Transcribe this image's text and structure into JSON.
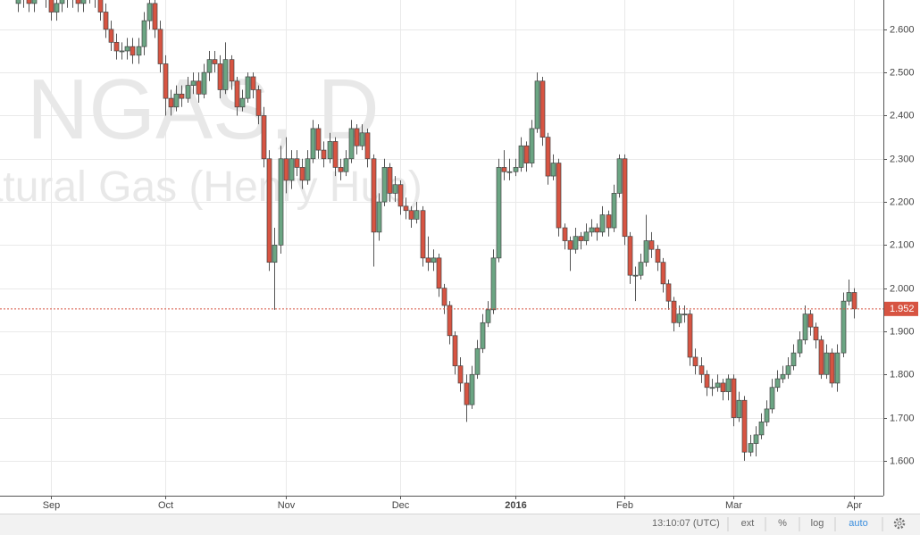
{
  "chart_data": {
    "type": "candlestick",
    "watermark": "NGAS, D",
    "watermark_subtitle": "Natural Gas (Henry Hub)",
    "up_color": "#6ba583",
    "down_color": "#d75442",
    "grid": true,
    "ylim": [
      1.519,
      2.668
    ],
    "yticks": [
      {
        "value": 1.6,
        "label": "1.600"
      },
      {
        "value": 1.7,
        "label": "1.700"
      },
      {
        "value": 1.8,
        "label": "1.800"
      },
      {
        "value": 1.9,
        "label": "1.900"
      },
      {
        "value": 2.0,
        "label": "2.000"
      },
      {
        "value": 2.1,
        "label": "2.100"
      },
      {
        "value": 2.2,
        "label": "2.200"
      },
      {
        "value": 2.3,
        "label": "2.300"
      },
      {
        "value": 2.4,
        "label": "2.400"
      },
      {
        "value": 2.5,
        "label": "2.500"
      },
      {
        "value": 2.6,
        "label": "2.600"
      }
    ],
    "last_price": {
      "value": 1.952,
      "label": "1.952",
      "color": "#d75442"
    },
    "categories": [
      null,
      null,
      null,
      null,
      null,
      null,
      "Sep",
      null,
      null,
      null,
      null,
      null,
      null,
      null,
      null,
      null,
      null,
      null,
      null,
      null,
      null,
      null,
      null,
      null,
      null,
      null,
      null,
      "Oct",
      null,
      null,
      null,
      null,
      null,
      null,
      null,
      null,
      null,
      null,
      null,
      null,
      null,
      null,
      null,
      null,
      null,
      null,
      null,
      null,
      null,
      "Nov",
      null,
      null,
      null,
      null,
      null,
      null,
      null,
      null,
      null,
      null,
      null,
      null,
      null,
      null,
      null,
      null,
      null,
      null,
      null,
      null,
      "Dec",
      null,
      null,
      null,
      null,
      null,
      null,
      null,
      null,
      null,
      null,
      null,
      null,
      null,
      null,
      null,
      null,
      null,
      null,
      null,
      null,
      "2016",
      null,
      null,
      null,
      null,
      null,
      null,
      null,
      null,
      null,
      null,
      null,
      null,
      null,
      null,
      null,
      null,
      null,
      null,
      null,
      "Feb",
      null,
      null,
      null,
      null,
      null,
      null,
      null,
      null,
      null,
      null,
      null,
      null,
      null,
      null,
      null,
      null,
      null,
      null,
      null,
      "Mar",
      null,
      null,
      null,
      null,
      null,
      null,
      null,
      null,
      null,
      null,
      null,
      null,
      null,
      null,
      null,
      null,
      null,
      null,
      null,
      null,
      null,
      "Apr"
    ],
    "ohlc": [
      [
        2.66,
        2.69,
        2.64,
        2.67
      ],
      [
        2.67,
        2.7,
        2.65,
        2.68
      ],
      [
        2.68,
        2.7,
        2.64,
        2.66
      ],
      [
        2.66,
        2.71,
        2.64,
        2.69
      ],
      [
        2.69,
        2.72,
        2.67,
        2.7
      ],
      [
        2.7,
        2.72,
        2.65,
        2.67
      ],
      [
        2.67,
        2.69,
        2.62,
        2.64
      ],
      [
        2.64,
        2.68,
        2.62,
        2.66
      ],
      [
        2.66,
        2.7,
        2.64,
        2.68
      ],
      [
        2.68,
        2.7,
        2.65,
        2.67
      ],
      [
        2.67,
        2.71,
        2.65,
        2.69
      ],
      [
        2.69,
        2.71,
        2.64,
        2.66
      ],
      [
        2.66,
        2.7,
        2.64,
        2.68
      ],
      [
        2.68,
        2.72,
        2.66,
        2.7
      ],
      [
        2.7,
        2.72,
        2.65,
        2.67
      ],
      [
        2.67,
        2.69,
        2.62,
        2.64
      ],
      [
        2.64,
        2.66,
        2.58,
        2.6
      ],
      [
        2.6,
        2.62,
        2.55,
        2.57
      ],
      [
        2.57,
        2.59,
        2.53,
        2.55
      ],
      [
        2.55,
        2.57,
        2.53,
        2.55
      ],
      [
        2.55,
        2.58,
        2.53,
        2.56
      ],
      [
        2.56,
        2.58,
        2.52,
        2.54
      ],
      [
        2.54,
        2.58,
        2.52,
        2.56
      ],
      [
        2.56,
        2.64,
        2.54,
        2.62
      ],
      [
        2.62,
        2.68,
        2.6,
        2.66
      ],
      [
        2.66,
        2.67,
        2.58,
        2.6
      ],
      [
        2.6,
        2.62,
        2.5,
        2.52
      ],
      [
        2.52,
        2.54,
        2.4,
        2.44
      ],
      [
        2.44,
        2.46,
        2.4,
        2.42
      ],
      [
        2.42,
        2.47,
        2.41,
        2.45
      ],
      [
        2.45,
        2.47,
        2.42,
        2.44
      ],
      [
        2.44,
        2.49,
        2.43,
        2.47
      ],
      [
        2.47,
        2.5,
        2.45,
        2.48
      ],
      [
        2.48,
        2.5,
        2.43,
        2.45
      ],
      [
        2.45,
        2.52,
        2.44,
        2.5
      ],
      [
        2.5,
        2.55,
        2.48,
        2.53
      ],
      [
        2.53,
        2.55,
        2.5,
        2.52
      ],
      [
        2.52,
        2.54,
        2.44,
        2.46
      ],
      [
        2.46,
        2.57,
        2.45,
        2.53
      ],
      [
        2.53,
        2.54,
        2.46,
        2.48
      ],
      [
        2.48,
        2.49,
        2.4,
        2.42
      ],
      [
        2.42,
        2.46,
        2.41,
        2.44
      ],
      [
        2.44,
        2.5,
        2.43,
        2.49
      ],
      [
        2.49,
        2.5,
        2.44,
        2.46
      ],
      [
        2.46,
        2.47,
        2.38,
        2.4
      ],
      [
        2.4,
        2.42,
        2.28,
        2.3
      ],
      [
        2.3,
        2.32,
        2.04,
        2.06
      ],
      [
        2.06,
        2.14,
        1.95,
        2.1
      ],
      [
        2.1,
        2.33,
        2.08,
        2.3
      ],
      [
        2.3,
        2.35,
        2.22,
        2.25
      ],
      [
        2.25,
        2.32,
        2.23,
        2.3
      ],
      [
        2.3,
        2.32,
        2.26,
        2.28
      ],
      [
        2.28,
        2.3,
        2.23,
        2.25
      ],
      [
        2.25,
        2.32,
        2.24,
        2.3
      ],
      [
        2.3,
        2.39,
        2.29,
        2.37
      ],
      [
        2.37,
        2.38,
        2.3,
        2.32
      ],
      [
        2.32,
        2.34,
        2.28,
        2.3
      ],
      [
        2.3,
        2.36,
        2.29,
        2.34
      ],
      [
        2.34,
        2.35,
        2.26,
        2.28
      ],
      [
        2.28,
        2.3,
        2.25,
        2.27
      ],
      [
        2.27,
        2.32,
        2.26,
        2.3
      ],
      [
        2.3,
        2.39,
        2.29,
        2.37
      ],
      [
        2.37,
        2.38,
        2.31,
        2.33
      ],
      [
        2.33,
        2.38,
        2.32,
        2.36
      ],
      [
        2.36,
        2.37,
        2.28,
        2.3
      ],
      [
        2.3,
        2.31,
        2.05,
        2.13
      ],
      [
        2.13,
        2.22,
        2.11,
        2.2
      ],
      [
        2.2,
        2.3,
        2.19,
        2.28
      ],
      [
        2.28,
        2.29,
        2.2,
        2.22
      ],
      [
        2.22,
        2.26,
        2.2,
        2.24
      ],
      [
        2.24,
        2.25,
        2.17,
        2.19
      ],
      [
        2.19,
        2.21,
        2.16,
        2.18
      ],
      [
        2.18,
        2.19,
        2.14,
        2.16
      ],
      [
        2.16,
        2.2,
        2.15,
        2.18
      ],
      [
        2.18,
        2.19,
        2.05,
        2.07
      ],
      [
        2.07,
        2.12,
        2.04,
        2.06
      ],
      [
        2.06,
        2.09,
        2.04,
        2.07
      ],
      [
        2.07,
        2.08,
        1.98,
        2.0
      ],
      [
        2.0,
        2.01,
        1.94,
        1.96
      ],
      [
        1.96,
        1.97,
        1.87,
        1.89
      ],
      [
        1.89,
        1.9,
        1.8,
        1.82
      ],
      [
        1.82,
        1.84,
        1.76,
        1.78
      ],
      [
        1.78,
        1.8,
        1.69,
        1.73
      ],
      [
        1.73,
        1.82,
        1.72,
        1.8
      ],
      [
        1.8,
        1.88,
        1.79,
        1.86
      ],
      [
        1.86,
        1.94,
        1.85,
        1.92
      ],
      [
        1.92,
        1.97,
        1.91,
        1.95
      ],
      [
        1.95,
        2.09,
        1.94,
        2.07
      ],
      [
        2.07,
        2.3,
        2.06,
        2.28
      ],
      [
        2.28,
        2.32,
        2.25,
        2.27
      ],
      [
        2.27,
        2.3,
        2.25,
        2.27
      ],
      [
        2.27,
        2.3,
        2.26,
        2.28
      ],
      [
        2.28,
        2.35,
        2.27,
        2.33
      ],
      [
        2.33,
        2.34,
        2.27,
        2.29
      ],
      [
        2.29,
        2.39,
        2.28,
        2.37
      ],
      [
        2.37,
        2.5,
        2.36,
        2.48
      ],
      [
        2.48,
        2.49,
        2.33,
        2.35
      ],
      [
        2.35,
        2.36,
        2.24,
        2.26
      ],
      [
        2.26,
        2.31,
        2.25,
        2.29
      ],
      [
        2.29,
        2.3,
        2.12,
        2.14
      ],
      [
        2.14,
        2.15,
        2.09,
        2.11
      ],
      [
        2.11,
        2.12,
        2.04,
        2.09
      ],
      [
        2.09,
        2.14,
        2.08,
        2.12
      ],
      [
        2.12,
        2.13,
        2.09,
        2.11
      ],
      [
        2.11,
        2.15,
        2.1,
        2.13
      ],
      [
        2.13,
        2.16,
        2.12,
        2.14
      ],
      [
        2.14,
        2.15,
        2.11,
        2.13
      ],
      [
        2.13,
        2.19,
        2.12,
        2.17
      ],
      [
        2.17,
        2.18,
        2.12,
        2.14
      ],
      [
        2.14,
        2.24,
        2.13,
        2.22
      ],
      [
        2.22,
        2.31,
        2.21,
        2.3
      ],
      [
        2.3,
        2.31,
        2.1,
        2.12
      ],
      [
        2.12,
        2.13,
        2.01,
        2.03
      ],
      [
        2.03,
        2.05,
        1.97,
        2.03
      ],
      [
        2.03,
        2.08,
        2.02,
        2.06
      ],
      [
        2.06,
        2.17,
        2.05,
        2.11
      ],
      [
        2.11,
        2.13,
        2.07,
        2.09
      ],
      [
        2.09,
        2.1,
        2.04,
        2.06
      ],
      [
        2.06,
        2.07,
        1.99,
        2.01
      ],
      [
        2.01,
        2.02,
        1.95,
        1.97
      ],
      [
        1.97,
        1.98,
        1.9,
        1.92
      ],
      [
        1.92,
        1.96,
        1.91,
        1.94
      ],
      [
        1.94,
        1.96,
        1.92,
        1.94
      ],
      [
        1.94,
        1.95,
        1.82,
        1.84
      ],
      [
        1.84,
        1.86,
        1.8,
        1.82
      ],
      [
        1.82,
        1.84,
        1.78,
        1.8
      ],
      [
        1.8,
        1.81,
        1.75,
        1.77
      ],
      [
        1.77,
        1.79,
        1.75,
        1.77
      ],
      [
        1.77,
        1.8,
        1.76,
        1.78
      ],
      [
        1.78,
        1.79,
        1.74,
        1.76
      ],
      [
        1.76,
        1.8,
        1.74,
        1.79
      ],
      [
        1.79,
        1.8,
        1.68,
        1.7
      ],
      [
        1.7,
        1.76,
        1.69,
        1.74
      ],
      [
        1.74,
        1.75,
        1.6,
        1.62
      ],
      [
        1.62,
        1.66,
        1.61,
        1.64
      ],
      [
        1.64,
        1.68,
        1.61,
        1.66
      ],
      [
        1.66,
        1.71,
        1.65,
        1.69
      ],
      [
        1.69,
        1.74,
        1.68,
        1.72
      ],
      [
        1.72,
        1.79,
        1.71,
        1.77
      ],
      [
        1.77,
        1.81,
        1.76,
        1.79
      ],
      [
        1.79,
        1.82,
        1.78,
        1.8
      ],
      [
        1.8,
        1.84,
        1.79,
        1.82
      ],
      [
        1.82,
        1.87,
        1.81,
        1.85
      ],
      [
        1.85,
        1.9,
        1.84,
        1.88
      ],
      [
        1.88,
        1.96,
        1.87,
        1.94
      ],
      [
        1.94,
        1.95,
        1.89,
        1.91
      ],
      [
        1.91,
        1.92,
        1.86,
        1.88
      ],
      [
        1.88,
        1.89,
        1.79,
        1.8
      ],
      [
        1.8,
        1.87,
        1.79,
        1.85
      ],
      [
        1.85,
        1.86,
        1.77,
        1.78
      ],
      [
        1.78,
        1.87,
        1.76,
        1.85
      ],
      [
        1.85,
        1.99,
        1.84,
        1.97
      ],
      [
        1.97,
        2.02,
        1.96,
        1.99
      ],
      [
        1.99,
        2.0,
        1.93,
        1.952
      ]
    ]
  },
  "toolbar": {
    "time": "13:10:07 (UTC)",
    "ext": "ext",
    "percent": "%",
    "log": "log",
    "auto": "auto"
  }
}
